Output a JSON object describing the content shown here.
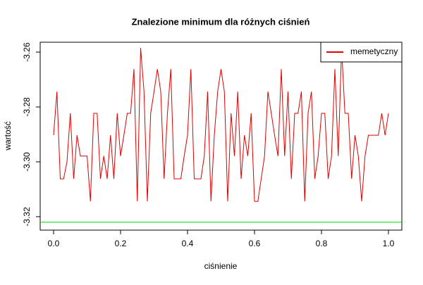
{
  "chart_data": {
    "type": "line",
    "title": "Znalezione minimum dla różnych ciśnień",
    "x_label": "ciśnienie",
    "y_label": "wartość",
    "x": [
      0,
      0.01,
      0.02,
      0.03,
      0.04,
      0.05,
      0.06,
      0.07,
      0.08,
      0.09,
      0.1,
      0.11,
      0.12,
      0.13,
      0.14,
      0.15,
      0.16,
      0.17,
      0.18,
      0.19,
      0.2,
      0.21,
      0.22,
      0.23,
      0.24,
      0.25,
      0.26,
      0.27,
      0.28,
      0.29,
      0.3,
      0.31,
      0.32,
      0.33,
      0.34,
      0.35,
      0.36,
      0.37,
      0.38,
      0.39,
      0.4,
      0.41,
      0.42,
      0.43,
      0.44,
      0.45,
      0.46,
      0.47,
      0.48,
      0.49,
      0.5,
      0.51,
      0.52,
      0.53,
      0.54,
      0.55,
      0.56,
      0.57,
      0.58,
      0.59,
      0.6,
      0.61,
      0.62,
      0.63,
      0.64,
      0.65,
      0.66,
      0.67,
      0.68,
      0.69,
      0.7,
      0.71,
      0.72,
      0.73,
      0.74,
      0.75,
      0.76,
      0.77,
      0.78,
      0.79,
      0.8,
      0.81,
      0.82,
      0.83,
      0.84,
      0.85,
      0.86,
      0.87,
      0.88,
      0.89,
      0.9,
      0.91,
      0.92,
      0.93,
      0.94,
      0.95,
      0.96,
      0.97,
      0.98,
      0.99,
      1
    ],
    "series": [
      {
        "name": "memetyczny",
        "color": "#dd0000",
        "values": [
          -3.2903,
          -3.2744,
          -3.3062,
          -3.3062,
          -3.3,
          -3.2823,
          -3.3062,
          -3.2903,
          -3.2979,
          -3.2979,
          -3.2979,
          -3.3144,
          -3.2823,
          -3.2823,
          -3.3062,
          -3.2979,
          -3.3062,
          -3.2903,
          -3.3062,
          -3.2823,
          -3.2979,
          -3.2903,
          -3.2823,
          -3.2823,
          -3.2662,
          -3.3144,
          -3.2585,
          -3.2744,
          -3.3144,
          -3.2823,
          -3.2744,
          -3.2662,
          -3.2744,
          -3.3062,
          -3.2823,
          -3.2662,
          -3.3062,
          -3.3062,
          -3.3062,
          -3.2979,
          -3.2903,
          -3.2662,
          -3.3062,
          -3.3062,
          -3.3062,
          -3.2979,
          -3.2744,
          -3.3144,
          -3.2903,
          -3.2744,
          -3.2662,
          -3.2744,
          -3.3144,
          -3.2823,
          -3.2979,
          -3.2744,
          -3.3062,
          -3.2903,
          -3.2979,
          -3.2823,
          -3.3144,
          -3.3144,
          -3.3062,
          -3.2979,
          -3.2744,
          -3.2823,
          -3.2903,
          -3.2979,
          -3.2662,
          -3.2979,
          -3.2744,
          -3.3062,
          -3.2823,
          -3.2823,
          -3.2744,
          -3.3144,
          -3.2823,
          -3.2744,
          -3.3062,
          -3.2979,
          -3.2823,
          -3.2823,
          -3.3062,
          -3.2979,
          -3.2662,
          -3.2979,
          -3.2585,
          -3.2823,
          -3.2823,
          -3.3062,
          -3.2903,
          -3.2979,
          -3.3144,
          -3.2979,
          -3.2903,
          -3.2903,
          -3.2903,
          -3.2903,
          -3.2823,
          -3.2903,
          -3.2823
        ]
      }
    ],
    "reference_line": {
      "value": -3.322,
      "color": "#00dd00"
    },
    "xlim": [
      -0.04,
      1.04
    ],
    "ylim": [
      -3.3249,
      -3.2564
    ],
    "xticks": [
      {
        "value": 0,
        "label": "0.0"
      },
      0.2,
      0.4,
      0.6,
      0.8,
      {
        "value": 1,
        "label": "1.0"
      }
    ],
    "yticks": [
      -3.32,
      {
        "value": -3.3,
        "label": "-3.30"
      },
      -3.28,
      -3.26
    ],
    "legend": "top-right"
  }
}
